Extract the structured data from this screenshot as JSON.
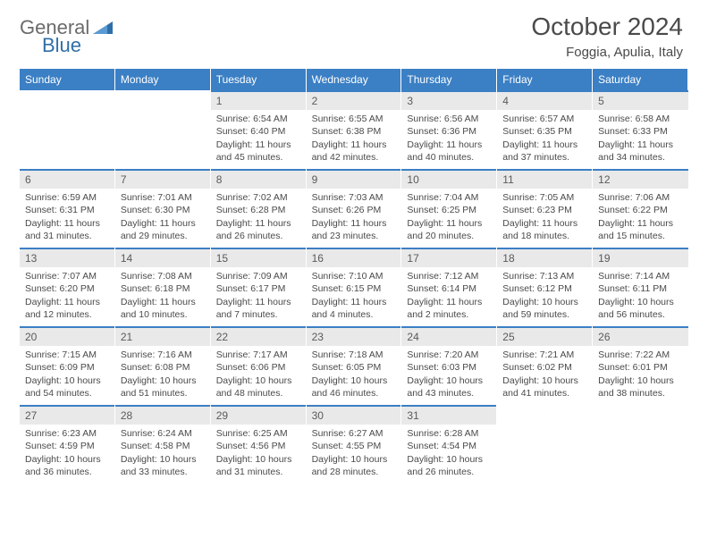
{
  "logo": {
    "text_gray": "General",
    "text_blue": "Blue"
  },
  "header": {
    "month_title": "October 2024",
    "location": "Foggia, Apulia, Italy"
  },
  "theme": {
    "header_bg": "#3b7fc4",
    "daynum_bg": "#e9e9e9",
    "rule_color": "#3b7fc4",
    "text_color": "#4a4a4a",
    "page_bg": "#ffffff"
  },
  "dow": [
    "Sunday",
    "Monday",
    "Tuesday",
    "Wednesday",
    "Thursday",
    "Friday",
    "Saturday"
  ],
  "weeks": [
    [
      null,
      null,
      {
        "n": "1",
        "sr": "6:54 AM",
        "ss": "6:40 PM",
        "dl": "11 hours and 45 minutes."
      },
      {
        "n": "2",
        "sr": "6:55 AM",
        "ss": "6:38 PM",
        "dl": "11 hours and 42 minutes."
      },
      {
        "n": "3",
        "sr": "6:56 AM",
        "ss": "6:36 PM",
        "dl": "11 hours and 40 minutes."
      },
      {
        "n": "4",
        "sr": "6:57 AM",
        "ss": "6:35 PM",
        "dl": "11 hours and 37 minutes."
      },
      {
        "n": "5",
        "sr": "6:58 AM",
        "ss": "6:33 PM",
        "dl": "11 hours and 34 minutes."
      }
    ],
    [
      {
        "n": "6",
        "sr": "6:59 AM",
        "ss": "6:31 PM",
        "dl": "11 hours and 31 minutes."
      },
      {
        "n": "7",
        "sr": "7:01 AM",
        "ss": "6:30 PM",
        "dl": "11 hours and 29 minutes."
      },
      {
        "n": "8",
        "sr": "7:02 AM",
        "ss": "6:28 PM",
        "dl": "11 hours and 26 minutes."
      },
      {
        "n": "9",
        "sr": "7:03 AM",
        "ss": "6:26 PM",
        "dl": "11 hours and 23 minutes."
      },
      {
        "n": "10",
        "sr": "7:04 AM",
        "ss": "6:25 PM",
        "dl": "11 hours and 20 minutes."
      },
      {
        "n": "11",
        "sr": "7:05 AM",
        "ss": "6:23 PM",
        "dl": "11 hours and 18 minutes."
      },
      {
        "n": "12",
        "sr": "7:06 AM",
        "ss": "6:22 PM",
        "dl": "11 hours and 15 minutes."
      }
    ],
    [
      {
        "n": "13",
        "sr": "7:07 AM",
        "ss": "6:20 PM",
        "dl": "11 hours and 12 minutes."
      },
      {
        "n": "14",
        "sr": "7:08 AM",
        "ss": "6:18 PM",
        "dl": "11 hours and 10 minutes."
      },
      {
        "n": "15",
        "sr": "7:09 AM",
        "ss": "6:17 PM",
        "dl": "11 hours and 7 minutes."
      },
      {
        "n": "16",
        "sr": "7:10 AM",
        "ss": "6:15 PM",
        "dl": "11 hours and 4 minutes."
      },
      {
        "n": "17",
        "sr": "7:12 AM",
        "ss": "6:14 PM",
        "dl": "11 hours and 2 minutes."
      },
      {
        "n": "18",
        "sr": "7:13 AM",
        "ss": "6:12 PM",
        "dl": "10 hours and 59 minutes."
      },
      {
        "n": "19",
        "sr": "7:14 AM",
        "ss": "6:11 PM",
        "dl": "10 hours and 56 minutes."
      }
    ],
    [
      {
        "n": "20",
        "sr": "7:15 AM",
        "ss": "6:09 PM",
        "dl": "10 hours and 54 minutes."
      },
      {
        "n": "21",
        "sr": "7:16 AM",
        "ss": "6:08 PM",
        "dl": "10 hours and 51 minutes."
      },
      {
        "n": "22",
        "sr": "7:17 AM",
        "ss": "6:06 PM",
        "dl": "10 hours and 48 minutes."
      },
      {
        "n": "23",
        "sr": "7:18 AM",
        "ss": "6:05 PM",
        "dl": "10 hours and 46 minutes."
      },
      {
        "n": "24",
        "sr": "7:20 AM",
        "ss": "6:03 PM",
        "dl": "10 hours and 43 minutes."
      },
      {
        "n": "25",
        "sr": "7:21 AM",
        "ss": "6:02 PM",
        "dl": "10 hours and 41 minutes."
      },
      {
        "n": "26",
        "sr": "7:22 AM",
        "ss": "6:01 PM",
        "dl": "10 hours and 38 minutes."
      }
    ],
    [
      {
        "n": "27",
        "sr": "6:23 AM",
        "ss": "4:59 PM",
        "dl": "10 hours and 36 minutes."
      },
      {
        "n": "28",
        "sr": "6:24 AM",
        "ss": "4:58 PM",
        "dl": "10 hours and 33 minutes."
      },
      {
        "n": "29",
        "sr": "6:25 AM",
        "ss": "4:56 PM",
        "dl": "10 hours and 31 minutes."
      },
      {
        "n": "30",
        "sr": "6:27 AM",
        "ss": "4:55 PM",
        "dl": "10 hours and 28 minutes."
      },
      {
        "n": "31",
        "sr": "6:28 AM",
        "ss": "4:54 PM",
        "dl": "10 hours and 26 minutes."
      },
      null,
      null
    ]
  ],
  "labels": {
    "sunrise": "Sunrise:",
    "sunset": "Sunset:",
    "daylight": "Daylight:"
  }
}
